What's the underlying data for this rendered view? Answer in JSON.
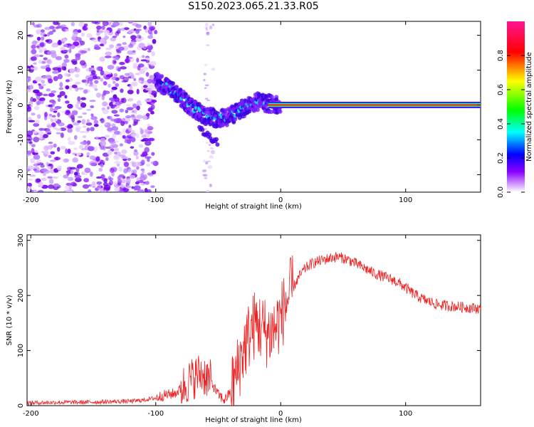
{
  "title": "S150.2023.065.21.33.R05",
  "chart_data": [
    {
      "type": "heatmap",
      "xlabel": "Height of straight line (km)",
      "ylabel": "Frequency (Hz)",
      "xlim": [
        -203,
        160
      ],
      "ylim": [
        -25,
        24
      ],
      "x_ticks": [
        -200,
        -100,
        0,
        100
      ],
      "y_ticks": [
        -20,
        -10,
        0,
        10,
        20
      ],
      "colorbar": {
        "label": "Normalized spectral amplitude",
        "range": [
          0.0,
          1.0
        ],
        "ticks": [
          0.0,
          0.2,
          0.4,
          0.6,
          0.8
        ],
        "colors": [
          "#ffffff",
          "#8b00ff",
          "#0000ff",
          "#00ffff",
          "#00ff00",
          "#ffff00",
          "#ff0000",
          "#ff1493"
        ]
      },
      "noise_region_x": [
        -203,
        -100
      ],
      "doppler_track": {
        "x": [
          -100,
          -90,
          -80,
          -70,
          -60,
          -50,
          -40,
          -30,
          -20,
          -10,
          0,
          10,
          50,
          100,
          160
        ],
        "y": [
          7,
          5,
          2,
          -1,
          -3,
          -4,
          -3,
          -1,
          1,
          0.5,
          0,
          0,
          0,
          0,
          0
        ]
      },
      "carrier": {
        "x_start": -10,
        "x_end": 160,
        "frequency": 0
      },
      "grid": false
    },
    {
      "type": "line",
      "xlabel": "Height of straight line (km)",
      "ylabel": "SNR (10 * v/v)",
      "xlim": [
        -203,
        160
      ],
      "ylim": [
        0,
        310
      ],
      "x_ticks": [
        -200,
        -100,
        0,
        100
      ],
      "y_ticks": [
        0,
        100,
        200,
        300
      ],
      "color": "#ee2222",
      "grid": false,
      "x": [
        -203,
        -180,
        -160,
        -140,
        -120,
        -110,
        -100,
        -95,
        -90,
        -85,
        -80,
        -75,
        -70,
        -65,
        -60,
        -55,
        -50,
        -45,
        -40,
        -35,
        -30,
        -25,
        -20,
        -15,
        -10,
        -5,
        0,
        5,
        10,
        15,
        20,
        25,
        30,
        35,
        40,
        45,
        50,
        55,
        60,
        65,
        70,
        75,
        80,
        85,
        90,
        95,
        100,
        105,
        110,
        115,
        120,
        125,
        130,
        135,
        140,
        145,
        150,
        155,
        160
      ],
      "y": [
        5,
        6,
        6,
        7,
        8,
        10,
        14,
        18,
        20,
        22,
        30,
        42,
        50,
        58,
        55,
        40,
        20,
        10,
        25,
        60,
        100,
        130,
        150,
        140,
        130,
        140,
        160,
        190,
        215,
        235,
        250,
        258,
        262,
        265,
        268,
        270,
        268,
        264,
        258,
        252,
        246,
        240,
        236,
        232,
        228,
        222,
        214,
        205,
        198,
        192,
        188,
        184,
        182,
        181,
        180,
        179,
        178,
        177,
        176
      ]
    }
  ]
}
